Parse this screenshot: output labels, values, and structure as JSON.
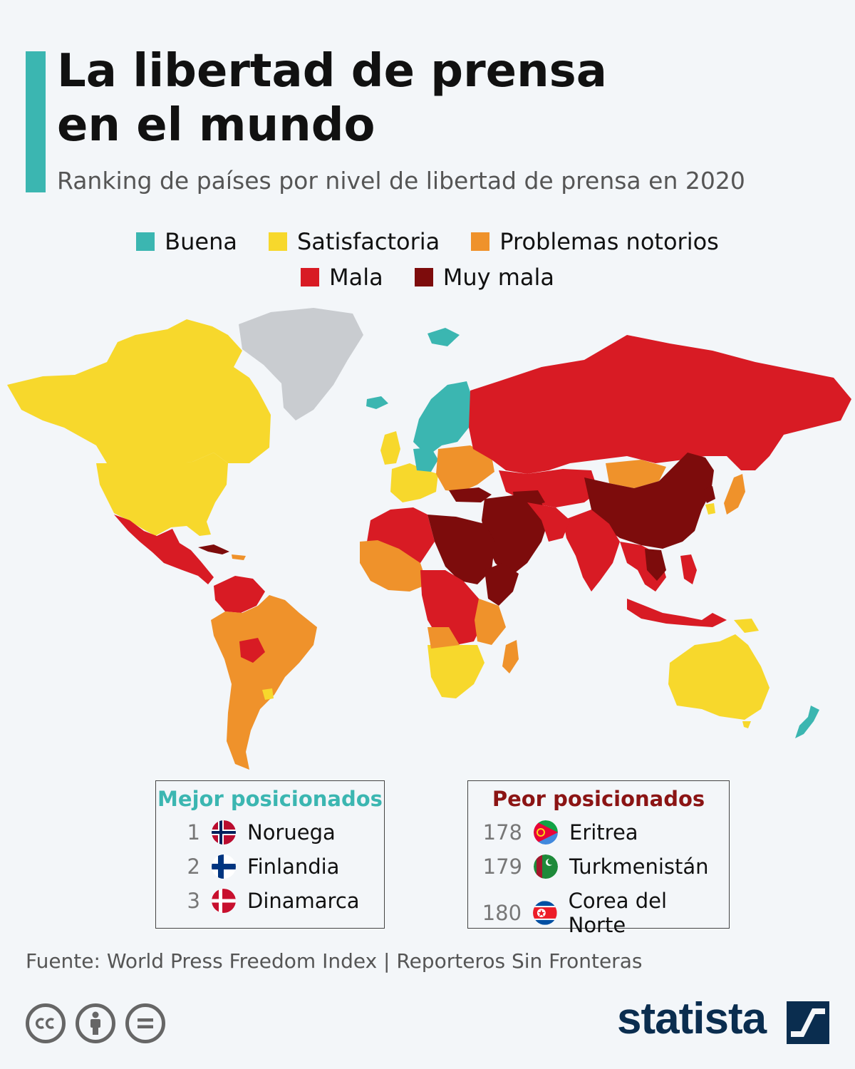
{
  "title": {
    "line1": "La libertad de prensa",
    "line2": "en el mundo"
  },
  "subtitle": "Ranking de países por nivel de libertad de prensa en 2020",
  "colors": {
    "buena": "#3bb6b1",
    "satisfactoria": "#f7d82c",
    "problemas": "#ef922b",
    "mala": "#d81b24",
    "muy_mala": "#7d0c0c",
    "no_data": "#c9ccd0",
    "accent": "#3bb6b1",
    "brand": "#0a2d4f"
  },
  "legend": [
    {
      "label": "Buena",
      "color": "#3bb6b1"
    },
    {
      "label": "Satisfactoria",
      "color": "#f7d82c"
    },
    {
      "label": "Problemas notorios",
      "color": "#ef922b"
    },
    {
      "label": "Mala",
      "color": "#d81b24"
    },
    {
      "label": "Muy mala",
      "color": "#7d0c0c"
    }
  ],
  "best": {
    "heading": "Mejor posicionados",
    "items": [
      {
        "rank": "1",
        "country": "Noruega",
        "flag": "norway-flag-icon"
      },
      {
        "rank": "2",
        "country": "Finlandia",
        "flag": "finland-flag-icon"
      },
      {
        "rank": "3",
        "country": "Dinamarca",
        "flag": "denmark-flag-icon"
      }
    ]
  },
  "worst": {
    "heading": "Peor posicionados",
    "items": [
      {
        "rank": "178",
        "country": "Eritrea",
        "flag": "eritrea-flag-icon"
      },
      {
        "rank": "179",
        "country": "Turkmenistán",
        "flag": "turkmenistan-flag-icon"
      },
      {
        "rank": "180",
        "country": "Corea del Norte",
        "flag": "north-korea-flag-icon"
      }
    ]
  },
  "source": "Fuente: World Press Freedom Index | Reporteros Sin Fronteras",
  "license_icons": [
    "cc-icon",
    "by-icon",
    "nd-icon"
  ],
  "brand": "statista"
}
